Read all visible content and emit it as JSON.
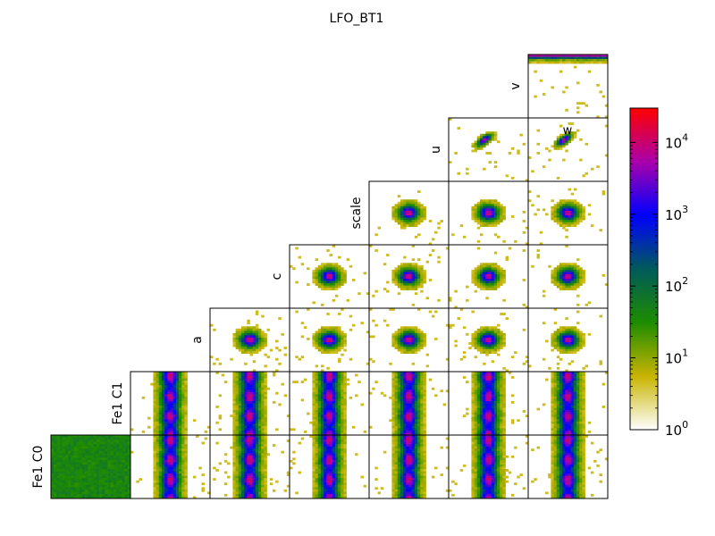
{
  "chart_data": {
    "type": "heatmap",
    "title": "LFO_BT1",
    "row_labels": [
      "v",
      "u",
      "scale",
      "c",
      "a",
      "Fe1 C1",
      "Fe1 C0"
    ],
    "col_labels": [
      "Fe1 C0",
      "Fe1 C1",
      "a",
      "c",
      "scale",
      "u",
      "v"
    ],
    "corner_label": "w",
    "layout": "lower-triangular corner matrix of 2D histograms",
    "pattern_by_row": {
      "v": "edge-density",
      "u": "tilted-blob",
      "scale": "round-blob",
      "c": "round-blob",
      "a": "round-blob",
      "Fe1 C1": "vertical-band",
      "Fe1 C0": "vertical-band"
    },
    "colorbar": {
      "scale": "log",
      "min": 1,
      "max": 30000,
      "tick_values": [
        1,
        10,
        100,
        1000,
        10000
      ],
      "tick_bases": [
        "10",
        "10",
        "10",
        "10",
        "10"
      ],
      "tick_exponents": [
        "0",
        "1",
        "2",
        "3",
        "4"
      ],
      "colormap": [
        "#ffffff",
        "#c8b400",
        "#1e8c00",
        "#005a5a",
        "#0000ff",
        "#aa00aa",
        "#ff0000"
      ]
    }
  }
}
